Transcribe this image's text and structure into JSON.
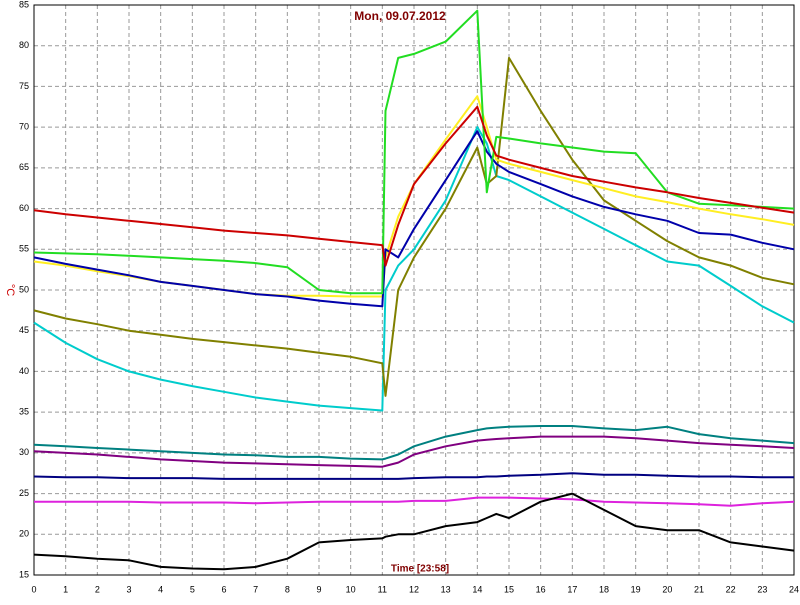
{
  "chart_data": {
    "type": "line",
    "title": "Mon, 09.07.2012",
    "x_label": "Time [23:58]",
    "y_label": "°C",
    "x": [
      0,
      1,
      2,
      3,
      4,
      5,
      6,
      7,
      8,
      9,
      10,
      11,
      11.1,
      11.5,
      12,
      13,
      14,
      14.3,
      14.6,
      15,
      16,
      17,
      18,
      19,
      20,
      21,
      22,
      23,
      24
    ],
    "series": [
      {
        "color": "#00cccc",
        "values": [
          46,
          43.5,
          41.5,
          40,
          39,
          38.2,
          37.5,
          36.8,
          36.3,
          35.8,
          35.5,
          35.2,
          50,
          53,
          55,
          61,
          70,
          68,
          64,
          63.5,
          61.5,
          59.5,
          57.5,
          55.5,
          53.5,
          53,
          50.5,
          48,
          46
        ]
      },
      {
        "color": "#808000",
        "values": [
          47.5,
          46.5,
          45.8,
          45,
          44.5,
          44,
          43.6,
          43.2,
          42.8,
          42.3,
          41.8,
          41,
          37,
          50,
          54,
          60,
          67.5,
          63,
          64,
          78.5,
          72,
          66,
          61,
          58.5,
          56,
          54,
          53,
          51.5,
          50.7
        ]
      },
      {
        "color": "#ffee22",
        "values": [
          53.5,
          53,
          52.3,
          51.7,
          51,
          50.5,
          50,
          49.5,
          49.3,
          49.3,
          49.2,
          49.2,
          54,
          59,
          63,
          68.5,
          73.8,
          70,
          66,
          65.5,
          64.5,
          63.5,
          62.5,
          61.5,
          60.8,
          60,
          59.3,
          58.7,
          58
        ]
      },
      {
        "color": "#0000aa",
        "values": [
          54,
          53.2,
          52.5,
          51.8,
          51,
          50.5,
          50,
          49.5,
          49.2,
          48.7,
          48.3,
          48,
          55,
          54,
          57.5,
          63.5,
          69.5,
          67,
          65.5,
          64.5,
          63,
          61.5,
          60.2,
          59.3,
          58.5,
          57,
          56.8,
          55.8,
          55
        ]
      },
      {
        "color": "#22dd22",
        "values": [
          54.6,
          54.5,
          54.4,
          54.2,
          54,
          53.8,
          53.6,
          53.3,
          52.8,
          50,
          49.6,
          49.6,
          72,
          78.5,
          79,
          80.5,
          84.3,
          62,
          68.8,
          68.6,
          68,
          67.5,
          67,
          66.8,
          62,
          60.6,
          60.4,
          60.2,
          60
        ]
      },
      {
        "color": "#cc0000",
        "values": [
          59.8,
          59.3,
          58.9,
          58.5,
          58.1,
          57.7,
          57.3,
          57,
          56.7,
          56.3,
          55.9,
          55.5,
          53,
          58,
          63,
          68,
          72.5,
          69,
          66.5,
          66,
          65,
          64,
          63.3,
          62.6,
          62,
          61.3,
          60.7,
          60.1,
          59.5
        ]
      },
      {
        "color": "#008080",
        "values": [
          31,
          30.8,
          30.6,
          30.4,
          30.2,
          30,
          29.8,
          29.7,
          29.5,
          29.5,
          29.3,
          29.2,
          29.3,
          29.8,
          30.8,
          32,
          32.8,
          33,
          33.1,
          33.2,
          33.3,
          33.3,
          33,
          32.8,
          33.2,
          32.3,
          31.8,
          31.5,
          31.2
        ]
      },
      {
        "color": "#800080",
        "values": [
          30.2,
          30,
          29.8,
          29.5,
          29.2,
          29,
          28.8,
          28.7,
          28.6,
          28.5,
          28.4,
          28.3,
          28.4,
          28.8,
          29.8,
          30.8,
          31.5,
          31.6,
          31.7,
          31.8,
          32,
          32,
          32,
          31.8,
          31.5,
          31.2,
          31,
          30.8,
          30.6
        ]
      },
      {
        "color": "#000080",
        "values": [
          27.1,
          27,
          27,
          26.9,
          26.9,
          26.9,
          26.8,
          26.8,
          26.8,
          26.8,
          26.8,
          26.8,
          26.8,
          26.8,
          26.9,
          27,
          27,
          27.1,
          27.1,
          27.2,
          27.3,
          27.5,
          27.3,
          27.3,
          27.2,
          27.1,
          27.1,
          27,
          27
        ]
      },
      {
        "color": "#dd22dd",
        "values": [
          24,
          24,
          24,
          24,
          23.9,
          23.9,
          23.9,
          23.8,
          23.9,
          24,
          24,
          24,
          24,
          24,
          24.1,
          24.1,
          24.5,
          24.5,
          24.5,
          24.5,
          24.4,
          24.3,
          24,
          23.9,
          23.8,
          23.7,
          23.5,
          23.8,
          24
        ]
      },
      {
        "color": "#000000",
        "values": [
          17.5,
          17.3,
          17,
          16.8,
          16,
          15.8,
          15.7,
          16,
          17,
          19,
          19.3,
          19.5,
          19.7,
          20,
          20,
          21,
          21.5,
          22,
          22.5,
          22,
          24,
          25,
          23,
          21,
          20.5,
          20.5,
          19,
          18.5,
          18
        ]
      }
    ],
    "xlim": [
      0,
      24
    ],
    "xticks": [
      0,
      1,
      2,
      3,
      4,
      5,
      6,
      7,
      8,
      9,
      10,
      11,
      12,
      13,
      14,
      15,
      16,
      17,
      18,
      19,
      20,
      21,
      22,
      23,
      24
    ],
    "ylim": [
      15,
      85
    ],
    "yticks": [
      15,
      20,
      25,
      30,
      35,
      40,
      45,
      50,
      55,
      60,
      65,
      70,
      75,
      80,
      85
    ],
    "grid": true
  }
}
